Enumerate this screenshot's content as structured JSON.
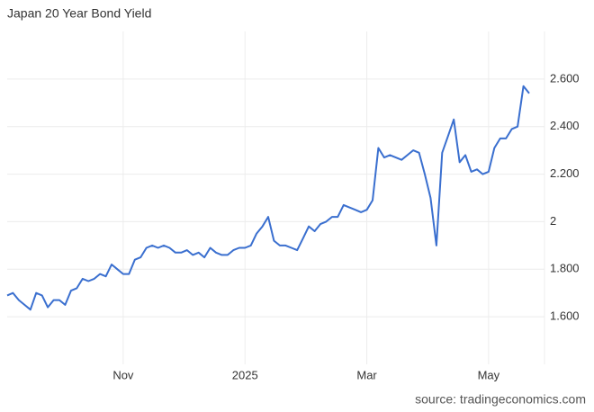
{
  "chart_data": {
    "type": "line",
    "title": "Japan 20 Year Bond Yield",
    "source": "source: tradingeconomics.com",
    "categories": [
      null,
      null,
      null,
      null,
      null,
      null,
      null,
      null,
      null,
      null,
      null,
      null,
      null,
      null,
      null,
      null,
      null,
      null,
      null,
      null,
      "Nov",
      null,
      null,
      null,
      null,
      null,
      null,
      null,
      null,
      null,
      null,
      null,
      null,
      null,
      null,
      null,
      null,
      null,
      null,
      null,
      null,
      "2025",
      null,
      null,
      null,
      null,
      null,
      null,
      null,
      null,
      null,
      null,
      null,
      null,
      null,
      null,
      null,
      null,
      null,
      null,
      null,
      null,
      "Mar",
      null,
      null,
      null,
      null,
      null,
      null,
      null,
      null,
      null,
      null,
      null,
      null,
      null,
      null,
      null,
      null,
      null,
      null,
      null,
      null,
      "May",
      null,
      null,
      null,
      null,
      null,
      null,
      null
    ],
    "values": [
      1.69,
      1.7,
      1.67,
      1.65,
      1.63,
      1.7,
      1.69,
      1.64,
      1.67,
      1.67,
      1.65,
      1.71,
      1.72,
      1.76,
      1.75,
      1.76,
      1.78,
      1.77,
      1.82,
      1.8,
      1.78,
      1.78,
      1.84,
      1.85,
      1.89,
      1.9,
      1.89,
      1.9,
      1.89,
      1.87,
      1.87,
      1.88,
      1.86,
      1.87,
      1.85,
      1.89,
      1.87,
      1.86,
      1.86,
      1.88,
      1.89,
      1.89,
      1.9,
      1.95,
      1.98,
      2.02,
      1.92,
      1.9,
      1.9,
      1.89,
      1.88,
      1.93,
      1.98,
      1.96,
      1.99,
      2.0,
      2.02,
      2.02,
      2.07,
      2.06,
      2.05,
      2.04,
      2.05,
      2.09,
      2.31,
      2.27,
      2.28,
      2.27,
      2.26,
      2.28,
      2.3,
      2.29,
      2.2,
      2.1,
      1.9,
      2.29,
      2.36,
      2.43,
      2.25,
      2.28,
      2.21,
      2.22,
      2.2,
      2.21,
      2.31,
      2.35,
      2.35,
      2.39,
      2.4,
      2.57,
      2.54
    ],
    "color": "#3a6fcf",
    "ylim": [
      1.4,
      2.8
    ],
    "yticks": [
      {
        "value": 1.6,
        "label": "1.600"
      },
      {
        "value": 1.8,
        "label": "1.800"
      },
      2,
      {
        "value": 2.2,
        "label": "2.200"
      },
      {
        "value": 2.4,
        "label": "2.400"
      },
      {
        "value": 2.6,
        "label": "2.600"
      }
    ],
    "grid": true
  }
}
